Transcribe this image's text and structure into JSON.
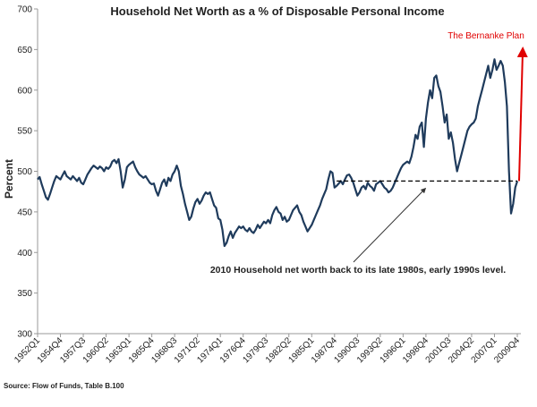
{
  "chart_data": {
    "type": "line",
    "title": "Household Net Worth as a % of Disposable Personal Income",
    "y_label": "Percent",
    "source": "Source: Flow of Funds,   Table B.100",
    "annotation": "2010 Household net worth back to its late 1980s, early 1990s level.",
    "plan_label": "The Bernanke Plan",
    "reference_level": 488,
    "color": "#1f3b5c",
    "ylim": [
      300,
      700
    ],
    "yticks": [
      300,
      350,
      400,
      450,
      500,
      550,
      600,
      650,
      700
    ],
    "categories": [
      "1952Q1",
      null,
      null,
      null,
      null,
      null,
      null,
      null,
      null,
      null,
      null,
      "1954Q4",
      null,
      null,
      null,
      null,
      null,
      null,
      null,
      null,
      null,
      null,
      "1957Q3",
      null,
      null,
      null,
      null,
      null,
      null,
      null,
      null,
      null,
      null,
      "1960Q2",
      null,
      null,
      null,
      null,
      null,
      null,
      null,
      null,
      null,
      null,
      "1963Q1",
      null,
      null,
      null,
      null,
      null,
      null,
      null,
      null,
      null,
      null,
      "1965Q4",
      null,
      null,
      null,
      null,
      null,
      null,
      null,
      null,
      null,
      null,
      "1968Q3",
      null,
      null,
      null,
      null,
      null,
      null,
      null,
      null,
      null,
      null,
      "1971Q2",
      null,
      null,
      null,
      null,
      null,
      null,
      null,
      null,
      null,
      null,
      "1974Q1",
      null,
      null,
      null,
      null,
      null,
      null,
      null,
      null,
      null,
      null,
      "1976Q4",
      null,
      null,
      null,
      null,
      null,
      null,
      null,
      null,
      null,
      null,
      "1979Q3",
      null,
      null,
      null,
      null,
      null,
      null,
      null,
      null,
      null,
      null,
      "1982Q2",
      null,
      null,
      null,
      null,
      null,
      null,
      null,
      null,
      null,
      null,
      "1985Q1",
      null,
      null,
      null,
      null,
      null,
      null,
      null,
      null,
      null,
      null,
      "1987Q4",
      null,
      null,
      null,
      null,
      null,
      null,
      null,
      null,
      null,
      null,
      "1990Q3",
      null,
      null,
      null,
      null,
      null,
      null,
      null,
      null,
      null,
      null,
      "1993Q2",
      null,
      null,
      null,
      null,
      null,
      null,
      null,
      null,
      null,
      null,
      "1996Q1",
      null,
      null,
      null,
      null,
      null,
      null,
      null,
      null,
      null,
      null,
      "1998Q4",
      null,
      null,
      null,
      null,
      null,
      null,
      null,
      null,
      null,
      null,
      "2001Q3",
      null,
      null,
      null,
      null,
      null,
      null,
      null,
      null,
      null,
      null,
      "2004Q2",
      null,
      null,
      null,
      null,
      null,
      null,
      null,
      null,
      null,
      null,
      "2007Q1",
      null,
      null,
      null,
      null,
      null,
      null,
      null,
      null,
      null,
      null,
      "2009Q4"
    ],
    "values": [
      490,
      493,
      484,
      476,
      468,
      465,
      472,
      480,
      488,
      494,
      492,
      490,
      495,
      500,
      494,
      492,
      490,
      494,
      491,
      488,
      492,
      486,
      484,
      490,
      496,
      500,
      504,
      507,
      505,
      503,
      506,
      504,
      500,
      505,
      503,
      506,
      512,
      514,
      510,
      515,
      500,
      480,
      490,
      505,
      508,
      510,
      512,
      505,
      500,
      496,
      494,
      492,
      494,
      490,
      486,
      484,
      485,
      476,
      470,
      478,
      486,
      490,
      482,
      492,
      488,
      496,
      500,
      507,
      500,
      482,
      472,
      460,
      450,
      440,
      444,
      454,
      462,
      466,
      460,
      464,
      470,
      474,
      472,
      474,
      466,
      458,
      455,
      442,
      440,
      428,
      408,
      412,
      420,
      426,
      418,
      424,
      428,
      432,
      430,
      432,
      428,
      426,
      430,
      426,
      424,
      428,
      434,
      430,
      434,
      438,
      436,
      440,
      436,
      446,
      452,
      456,
      450,
      448,
      440,
      444,
      438,
      440,
      446,
      452,
      455,
      458,
      450,
      446,
      438,
      432,
      426,
      430,
      434,
      440,
      446,
      452,
      458,
      466,
      472,
      478,
      490,
      500,
      498,
      480,
      482,
      485,
      488,
      484,
      490,
      495,
      496,
      492,
      486,
      478,
      470,
      474,
      480,
      482,
      478,
      486,
      482,
      480,
      476,
      484,
      486,
      488,
      484,
      480,
      478,
      474,
      476,
      480,
      486,
      492,
      498,
      504,
      508,
      510,
      512,
      510,
      518,
      530,
      545,
      540,
      555,
      560,
      530,
      565,
      585,
      600,
      590,
      615,
      618,
      605,
      598,
      580,
      560,
      570,
      540,
      548,
      535,
      515,
      500,
      510,
      520,
      530,
      540,
      550,
      555,
      558,
      560,
      565,
      580,
      590,
      600,
      610,
      620,
      630,
      615,
      625,
      638,
      625,
      630,
      636,
      630,
      610,
      580,
      500,
      448,
      460,
      480,
      488
    ]
  }
}
